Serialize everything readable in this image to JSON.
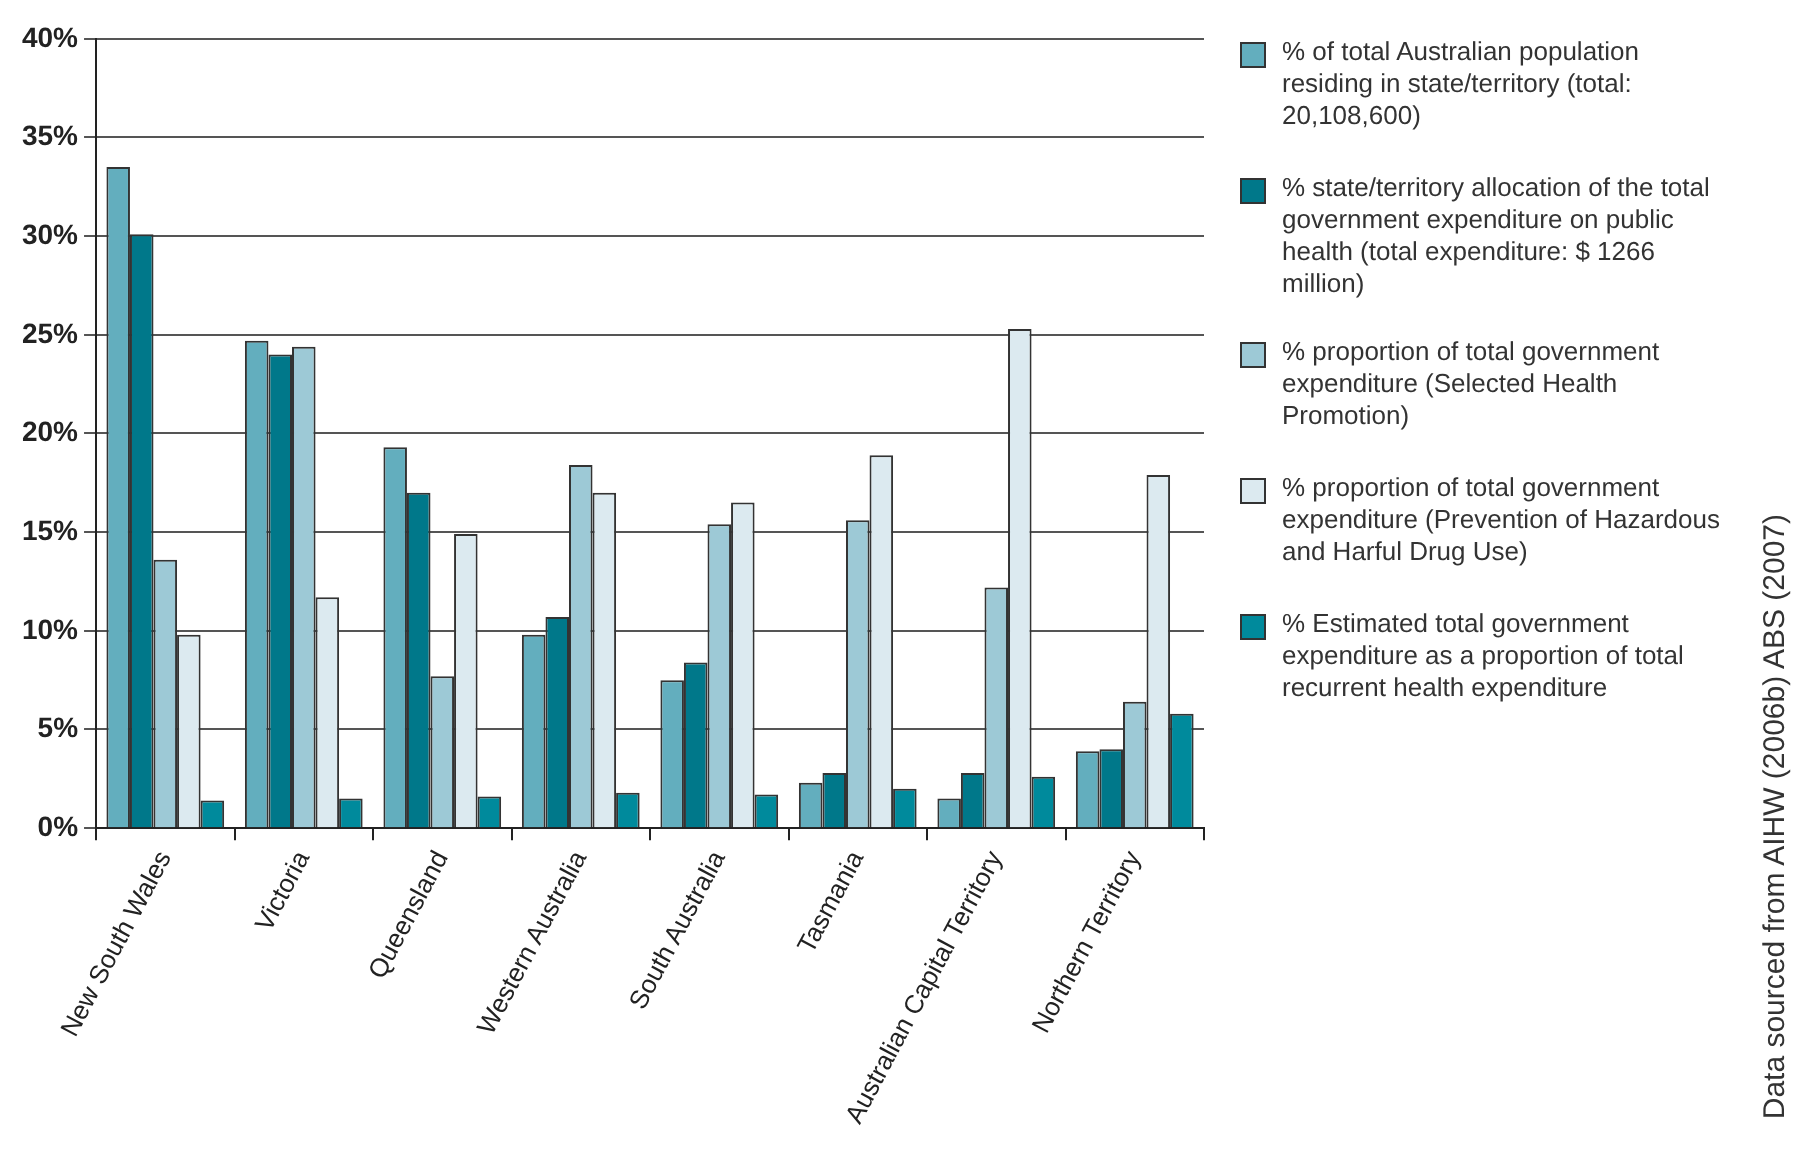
{
  "chart_data": {
    "type": "bar",
    "categories": [
      "New South Wales",
      "Victoria",
      "Queensland",
      "Western Australia",
      "South Australia",
      "Tasmania",
      "Australian Capital Territory",
      "Northern Territory"
    ],
    "series": [
      {
        "name": "% of total Australian population residing in state/territory (total: 20,108,600)",
        "color": "#63aebe",
        "values": [
          33.5,
          24.7,
          19.3,
          9.8,
          7.5,
          2.3,
          1.5,
          3.9
        ]
      },
      {
        "name": "% state/territory allocation of the total government expenditure on public health (total expenditure: $ 1266 million)",
        "color": "#00788a",
        "values": [
          30.1,
          24.0,
          17.0,
          10.7,
          8.4,
          2.8,
          2.8,
          4.0
        ]
      },
      {
        "name": "% proportion of total government expenditure (Selected Health Promotion)",
        "color": "#9dc9d6",
        "values": [
          13.6,
          24.4,
          7.7,
          18.4,
          15.4,
          15.6,
          12.2,
          6.4
        ]
      },
      {
        "name": "% proportion of total government expenditure (Prevention of Hazardous and Harful Drug Use)",
        "color": "#dceaf0",
        "values": [
          9.8,
          11.7,
          14.9,
          17.0,
          16.5,
          18.9,
          25.3,
          17.9
        ]
      },
      {
        "name": "% Estimated total government expenditure as a proportion of total recurrent health expenditure",
        "color": "#008a9c",
        "values": [
          1.4,
          1.5,
          1.6,
          1.8,
          1.7,
          2.0,
          2.6,
          5.8
        ]
      }
    ],
    "ylim": [
      0,
      40
    ],
    "yticks": [
      {
        "value": 0,
        "label": "0%"
      },
      {
        "value": 5,
        "label": "5%"
      },
      {
        "value": 10,
        "label": "10%"
      },
      {
        "value": 15,
        "label": "15%"
      },
      {
        "value": 20,
        "label": "20%"
      },
      {
        "value": 25,
        "label": "25%"
      },
      {
        "value": 30,
        "label": "30%"
      },
      {
        "value": 35,
        "label": "35%"
      },
      {
        "value": 40,
        "label": "40%"
      }
    ],
    "grid": "y",
    "legend": "right",
    "annotations": [
      "Data sourced from AIHW (2006b) ABS (2007)"
    ]
  }
}
